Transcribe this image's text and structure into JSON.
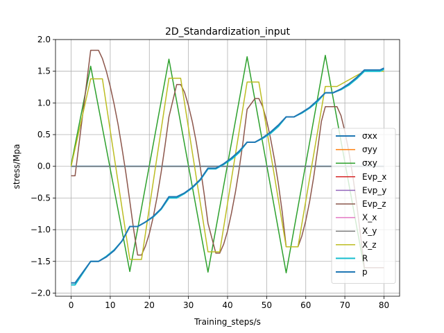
{
  "chart_data": {
    "type": "line",
    "title": "2D_Standardization_input",
    "xlabel": "Training_steps/s",
    "ylabel": "stress/Mpa",
    "xlim": [
      -4,
      84
    ],
    "ylim": [
      -2.05,
      2.0
    ],
    "xticks": [
      0,
      10,
      20,
      30,
      40,
      50,
      60,
      70,
      80
    ],
    "yticks": [
      -2.0,
      -1.5,
      -1.0,
      -0.5,
      0.0,
      0.5,
      1.0,
      1.5,
      2.0
    ],
    "ytick_labels": [
      "−2.0",
      "−1.5",
      "−1.0",
      "−0.5",
      "0.0",
      "0.5",
      "1.0",
      "1.5",
      "2.0"
    ],
    "grid": true,
    "legend_position": "lower-right",
    "series": [
      {
        "name": "σxx",
        "color": "#1f77b4",
        "width": 2,
        "x": [
          0,
          80
        ],
        "y": [
          0,
          0
        ]
      },
      {
        "name": "σyy",
        "color": "#ff7f0e",
        "width": 1.5,
        "x": [
          0,
          80
        ],
        "y": [
          0,
          0
        ]
      },
      {
        "name": "σxy",
        "color": "#2ca02c",
        "width": 1.5,
        "x": [
          0,
          5,
          15,
          25,
          35,
          45,
          55,
          65,
          75
        ],
        "y": [
          0.02,
          1.58,
          -1.66,
          1.69,
          -1.67,
          1.73,
          -1.68,
          1.75,
          -1.62
        ]
      },
      {
        "name": "Evp_x",
        "color": "#d62728",
        "width": 1.5,
        "x": [
          0,
          80
        ],
        "y": [
          0,
          0
        ]
      },
      {
        "name": "Evp_y",
        "color": "#9467bd",
        "width": 1.5,
        "x": [
          0,
          80
        ],
        "y": [
          0,
          0
        ]
      },
      {
        "name": "Evp_z",
        "color": "#8c564b",
        "width": 1.5,
        "x": [
          0,
          1,
          5,
          7,
          8,
          9,
          10,
          11,
          12,
          13,
          14,
          15,
          16,
          17,
          18,
          19,
          20,
          21,
          22,
          23,
          24,
          25,
          27,
          28,
          29,
          30,
          31,
          32,
          33,
          34,
          35,
          37,
          38,
          39,
          40,
          41,
          42,
          43,
          44,
          45,
          47,
          48,
          49,
          50,
          51,
          52,
          53,
          54,
          55,
          57,
          58,
          59,
          60,
          61,
          62,
          63,
          64,
          65,
          67,
          68,
          69,
          70,
          71,
          72,
          73,
          74,
          75,
          80
        ],
        "y": [
          -0.15,
          -0.15,
          1.83,
          1.83,
          1.7,
          1.5,
          1.26,
          0.98,
          0.66,
          0.29,
          -0.11,
          -0.55,
          -1.0,
          -1.4,
          -1.4,
          -1.26,
          -1.06,
          -0.8,
          -0.48,
          -0.1,
          0.32,
          0.78,
          1.29,
          1.29,
          1.17,
          0.96,
          0.7,
          0.38,
          0.0,
          -0.43,
          -0.9,
          -1.37,
          -1.37,
          -1.23,
          -1.02,
          -0.74,
          -0.41,
          -0.03,
          0.4,
          0.9,
          1.07,
          1.07,
          0.94,
          0.72,
          0.44,
          0.11,
          -0.28,
          -0.73,
          -1.27,
          -1.27,
          -1.27,
          -1.1,
          -0.86,
          -0.55,
          -0.18,
          0.25,
          0.71,
          0.94,
          0.94,
          0.94,
          0.8,
          0.55,
          0.24,
          -0.14,
          -0.58,
          -1.08,
          -1.6,
          -1.6
        ]
      },
      {
        "name": "X_x",
        "color": "#e377c2",
        "width": 1.5,
        "x": [
          0,
          80
        ],
        "y": [
          0,
          0
        ]
      },
      {
        "name": "X_y",
        "color": "#7f7f7f",
        "width": 1.5,
        "x": [
          0,
          80
        ],
        "y": [
          0,
          0
        ]
      },
      {
        "name": "X_z",
        "color": "#bcbd22",
        "width": 1.5,
        "x": [
          0,
          5,
          8,
          15,
          18,
          25,
          28,
          35,
          38,
          45,
          48,
          55,
          58,
          65,
          68,
          75,
          80
        ],
        "y": [
          0.0,
          1.38,
          1.38,
          -1.47,
          -1.47,
          1.39,
          1.39,
          -1.35,
          -1.35,
          1.33,
          1.33,
          -1.27,
          -1.27,
          1.26,
          1.26,
          1.5,
          1.5
        ]
      },
      {
        "name": "R",
        "color": "#17becf",
        "width": 2,
        "x": [
          0,
          1,
          5,
          7,
          9,
          11,
          13,
          15,
          17,
          19,
          21,
          23,
          25,
          27,
          29,
          31,
          33,
          35,
          37,
          39,
          41,
          43,
          45,
          47,
          49,
          51,
          53,
          55,
          57,
          59,
          61,
          63,
          65,
          67,
          69,
          71,
          73,
          75,
          77,
          79,
          80
        ],
        "y": [
          -1.87,
          -1.87,
          -1.5,
          -1.5,
          -1.42,
          -1.32,
          -1.18,
          -0.95,
          -0.95,
          -0.88,
          -0.8,
          -0.68,
          -0.5,
          -0.5,
          -0.43,
          -0.34,
          -0.22,
          -0.04,
          -0.04,
          0.03,
          0.11,
          0.22,
          0.38,
          0.38,
          0.44,
          0.52,
          0.63,
          0.78,
          0.78,
          0.84,
          0.92,
          1.02,
          1.16,
          1.16,
          1.21,
          1.28,
          1.38,
          1.5,
          1.5,
          1.5,
          1.53
        ]
      },
      {
        "name": "p",
        "color": "#1f77b4",
        "width": 2,
        "x": [
          0,
          1,
          5,
          7,
          9,
          11,
          13,
          15,
          17,
          19,
          21,
          23,
          25,
          27,
          29,
          31,
          33,
          35,
          37,
          39,
          41,
          43,
          45,
          47,
          49,
          51,
          53,
          55,
          57,
          59,
          61,
          63,
          65,
          67,
          69,
          71,
          73,
          75,
          77,
          79,
          80
        ],
        "y": [
          -1.84,
          -1.84,
          -1.5,
          -1.5,
          -1.43,
          -1.33,
          -1.18,
          -0.95,
          -0.95,
          -0.88,
          -0.79,
          -0.67,
          -0.48,
          -0.48,
          -0.42,
          -0.33,
          -0.21,
          -0.03,
          -0.03,
          0.04,
          0.13,
          0.24,
          0.38,
          0.38,
          0.45,
          0.54,
          0.65,
          0.78,
          0.78,
          0.85,
          0.93,
          1.04,
          1.16,
          1.16,
          1.22,
          1.3,
          1.4,
          1.52,
          1.52,
          1.52,
          1.55
        ]
      }
    ]
  }
}
